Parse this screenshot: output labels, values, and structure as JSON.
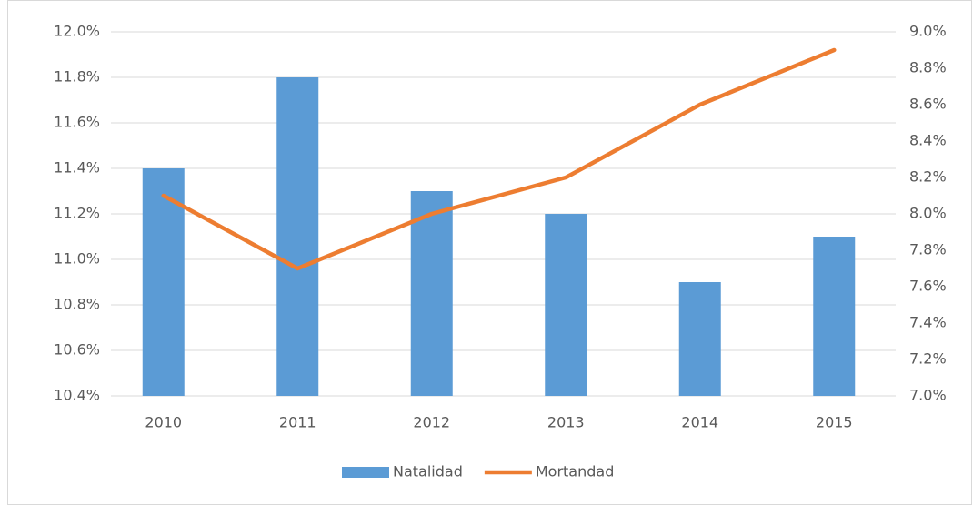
{
  "chart_data": {
    "type": "bar",
    "categories": [
      "2010",
      "2011",
      "2012",
      "2013",
      "2014",
      "2015"
    ],
    "series": [
      {
        "name": "Natalidad",
        "type": "bar",
        "color": "#5b9bd5",
        "values": [
          11.4,
          11.8,
          11.3,
          11.2,
          10.9,
          11.1
        ]
      },
      {
        "name": "Mortandad",
        "type": "line",
        "axis": "y2",
        "color": "#ed7d31",
        "values": [
          8.1,
          7.7,
          8.0,
          8.2,
          8.6,
          8.9
        ]
      }
    ],
    "ylim": [
      10.4,
      12.0
    ],
    "yticks": [
      {
        "value": 10.4,
        "label": "10.4%"
      },
      {
        "value": 10.6,
        "label": "10.6%"
      },
      {
        "value": 10.8,
        "label": "10.8%"
      },
      {
        "value": 11.0,
        "label": "11.0%"
      },
      {
        "value": 11.2,
        "label": "11.2%"
      },
      {
        "value": 11.4,
        "label": "11.4%"
      },
      {
        "value": 11.6,
        "label": "11.6%"
      },
      {
        "value": 11.8,
        "label": "11.8%"
      },
      {
        "value": 12.0,
        "label": "12.0%"
      }
    ],
    "y2lim": [
      7.0,
      9.0
    ],
    "y2ticks": [
      {
        "value": 7.0,
        "label": "7.0%"
      },
      {
        "value": 7.2,
        "label": "7.2%"
      },
      {
        "value": 7.4,
        "label": "7.4%"
      },
      {
        "value": 7.6,
        "label": "7.6%"
      },
      {
        "value": 7.8,
        "label": "7.8%"
      },
      {
        "value": 8.0,
        "label": "8.0%"
      },
      {
        "value": 8.2,
        "label": "8.2%"
      },
      {
        "value": 8.4,
        "label": "8.4%"
      },
      {
        "value": 8.6,
        "label": "8.6%"
      },
      {
        "value": 8.8,
        "label": "8.8%"
      },
      {
        "value": 9.0,
        "label": "9.0%"
      }
    ],
    "grid": true,
    "legend": "bottom"
  }
}
